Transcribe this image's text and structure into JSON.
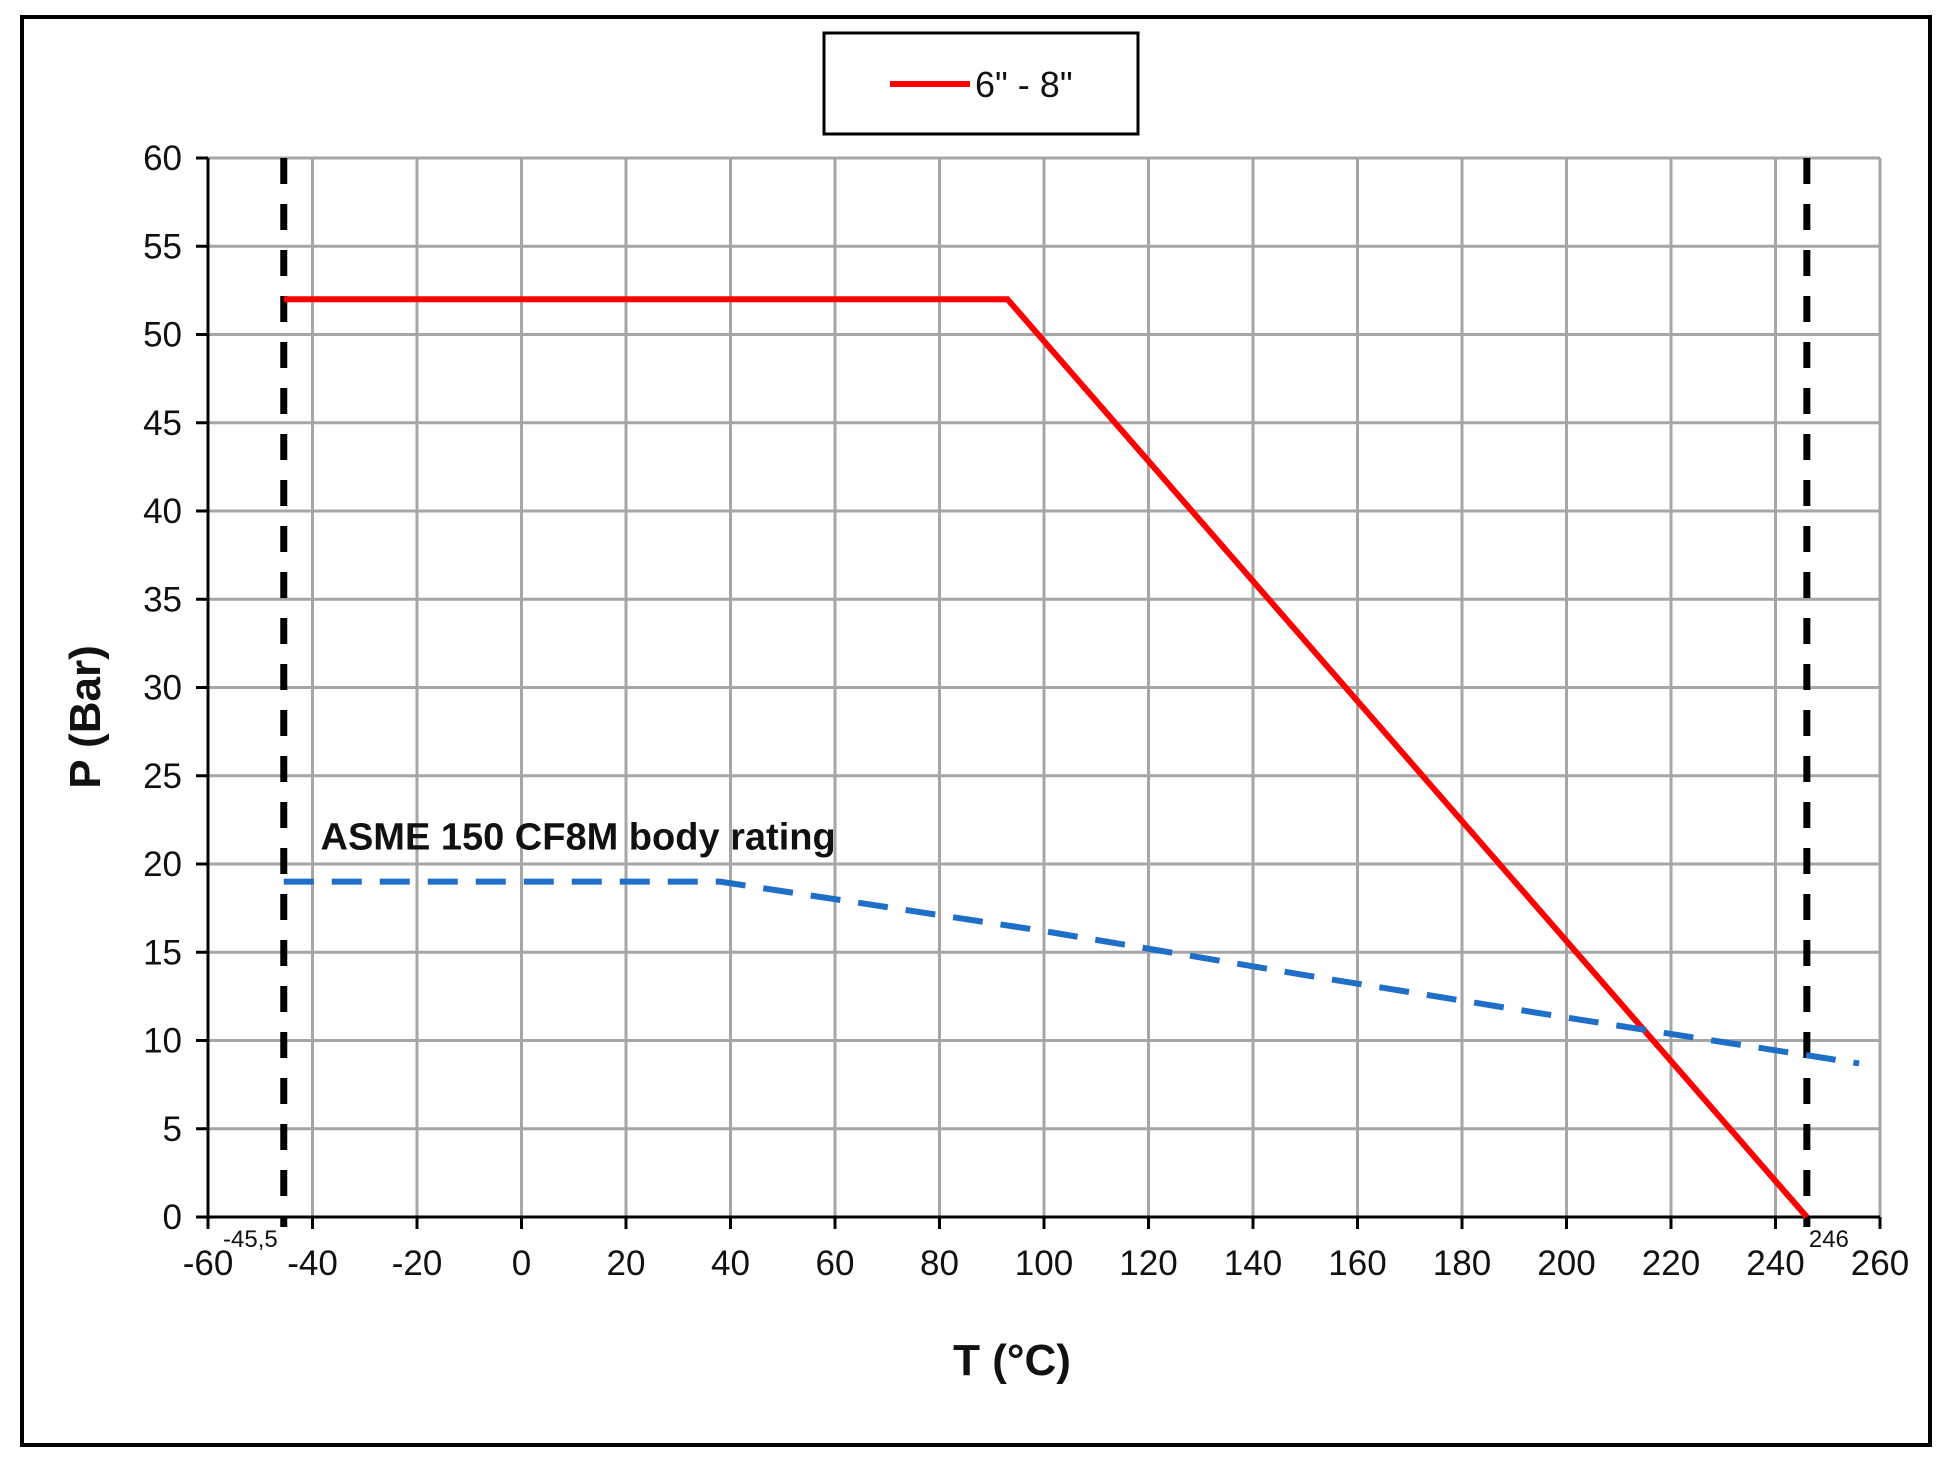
{
  "chart_data": {
    "type": "line",
    "xlabel": "T (°C)",
    "ylabel": "P (Bar)",
    "xlim": [
      -60,
      260
    ],
    "ylim": [
      0,
      60
    ],
    "x_ticks": [
      -60,
      -40,
      -20,
      0,
      20,
      40,
      60,
      80,
      100,
      120,
      140,
      160,
      180,
      200,
      220,
      240,
      260
    ],
    "y_ticks": [
      0,
      5,
      10,
      15,
      20,
      25,
      30,
      35,
      40,
      45,
      50,
      55,
      60
    ],
    "grid": true,
    "legend_position": "top-center",
    "series": [
      {
        "name": "6\" - 8\"",
        "color": "#ff0000",
        "style": "solid",
        "x": [
          -45.5,
          93,
          246
        ],
        "y": [
          52,
          52,
          0
        ]
      },
      {
        "name": "ASME 150 CF8M body rating",
        "color": "#1f6fc8",
        "style": "dashed",
        "x": [
          -45.5,
          38,
          100,
          150,
          200,
          256
        ],
        "y": [
          19,
          19,
          16.2,
          13.7,
          11.3,
          8.7
        ]
      }
    ],
    "limit_lines": [
      {
        "x": -45.5,
        "label": "-45,5"
      },
      {
        "x": 246,
        "label": "246"
      }
    ],
    "annotations": [
      {
        "text": "ASME 150 CF8M body rating",
        "x": -40,
        "y": 21.5
      }
    ]
  }
}
